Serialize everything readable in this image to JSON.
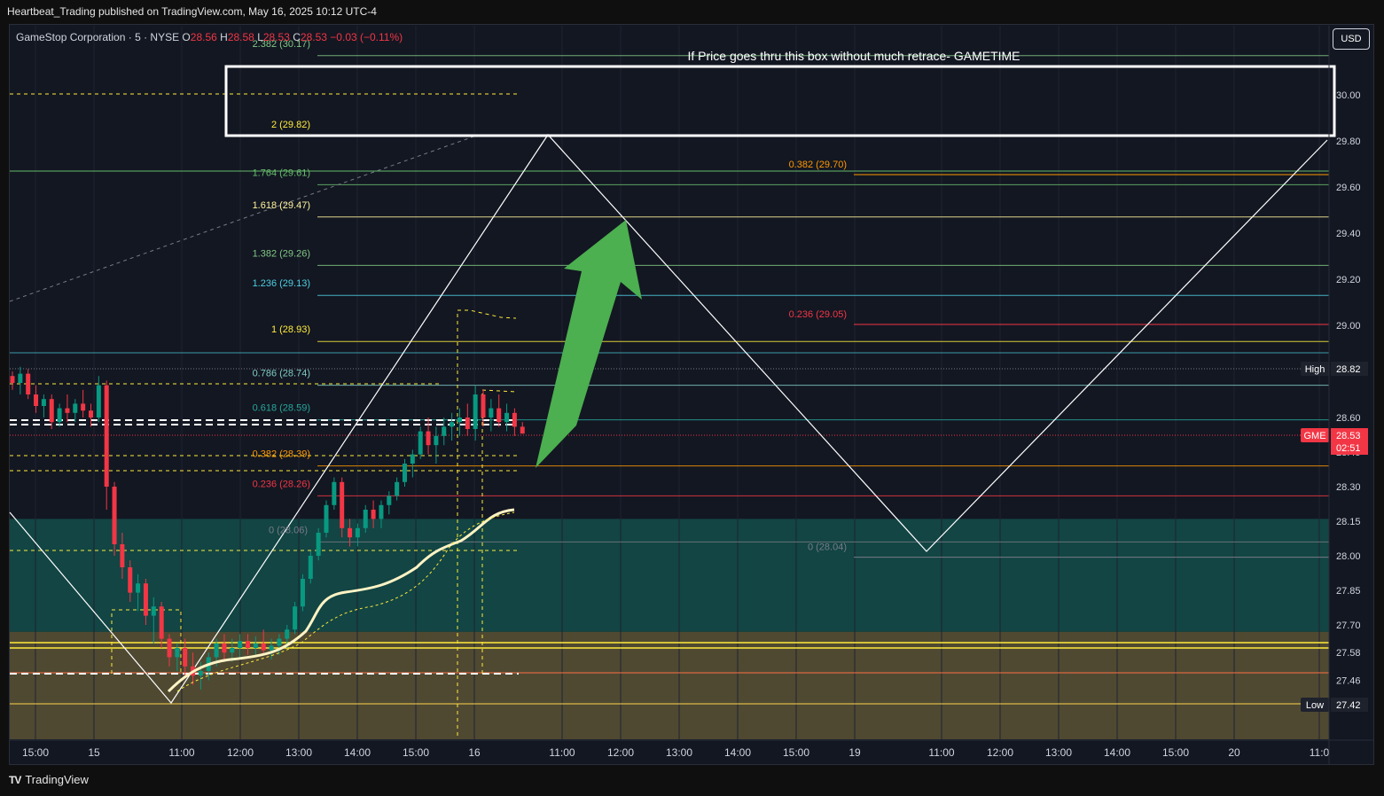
{
  "publish_info": "Heartbeat_Trading published on TradingView.com, May 16, 2025 10:12 UTC-4",
  "legend": {
    "symbol": "GameStop Corporation · 5 · NYSE",
    "open_label": "O",
    "open": "28.56",
    "high_label": "H",
    "high": "28.58",
    "low_label": "L",
    "low": "28.53",
    "close_label": "C",
    "close": "28.53",
    "change": "−0.03 (−0.11%)"
  },
  "currency_button": "USD",
  "footer": {
    "logo": "TV",
    "brand": "TradingView"
  },
  "colors": {
    "background": "#131722",
    "up_candle": "#089981",
    "down_candle": "#f23645",
    "price_tag": "#f23645",
    "high_low_tag": "#1e222d",
    "arrow": "#4caf50",
    "vwap": "#fff3c4",
    "zone_teal": "#134e4a",
    "zone_gold": "#5b5235"
  },
  "chart_data": {
    "type": "candlestick",
    "annotation": "If Price goes thru this box without much retrace- GAMETIME",
    "y_range": [
      27.28,
      30.31
    ],
    "y_ticks": [
      "30.00",
      "29.80",
      "29.60",
      "29.40",
      "29.20",
      "29.00",
      "28.60",
      "28.45",
      "28.30",
      "28.15",
      "28.00",
      "27.85",
      "27.70",
      "27.58",
      "27.46",
      "27.35"
    ],
    "x_ticks": [
      "15:00",
      "15",
      "11:00",
      "12:00",
      "13:00",
      "14:00",
      "15:00",
      "16",
      "11:00",
      "12:00",
      "13:00",
      "14:00",
      "15:00",
      "19",
      "11:00",
      "12:00",
      "13:00",
      "14:00",
      "15:00",
      "20",
      "11:0"
    ],
    "price_tags": {
      "high": {
        "label": "High",
        "value": "28.82"
      },
      "current": {
        "label": "GME",
        "value": "28.53",
        "countdown": "02:51"
      },
      "low": {
        "label": "Low",
        "value": "27.42"
      }
    },
    "fib_extension": [
      {
        "label": "2.382 (30.17)",
        "ratio": "2.382",
        "price": 30.17,
        "color": "#81c784"
      },
      {
        "label": "2 (29.82)",
        "ratio": "2",
        "price": 29.82,
        "color": "#ffeb3b"
      },
      {
        "label": "1.764 (29.61)",
        "ratio": "1.764",
        "price": 29.61,
        "color": "#66bb6a"
      },
      {
        "label": "1.618 (29.47)",
        "ratio": "1.618",
        "price": 29.47,
        "color": "#fff59d"
      },
      {
        "label": "1.382 (29.26)",
        "ratio": "1.382",
        "price": 29.26,
        "color": "#81c784"
      },
      {
        "label": "1.236 (29.13)",
        "ratio": "1.236",
        "price": 29.13,
        "color": "#4dd0e1"
      },
      {
        "label": "1 (28.93)",
        "ratio": "1",
        "price": 28.93,
        "color": "#ffeb3b"
      },
      {
        "label": "0.786 (28.74)",
        "ratio": "0.786",
        "price": 28.74,
        "color": "#80cbc4"
      },
      {
        "label": "0.618 (28.59)",
        "ratio": "0.618",
        "price": 28.59,
        "color": "#26a69a"
      },
      {
        "label": "0.382 (28.39)",
        "ratio": "0.382",
        "price": 28.39,
        "color": "#ff9800"
      },
      {
        "label": "0.236 (28.26)",
        "ratio": "0.236",
        "price": 28.26,
        "color": "#f23645"
      },
      {
        "label": "0 (28.06)",
        "ratio": "0",
        "price": 28.06,
        "color": "#787b86"
      }
    ],
    "fib_right": [
      {
        "label": "0.382 (29.70)",
        "price": 29.7,
        "color": "#ff9800"
      },
      {
        "label": "0.236 (29.05)",
        "price": 29.05,
        "color": "#f23645"
      },
      {
        "label": "0 (28.04)",
        "price": 28.04,
        "color": "#787b86"
      }
    ],
    "candles": [
      [
        28.78,
        28.8,
        28.72,
        28.75
      ],
      [
        28.75,
        28.82,
        28.7,
        28.79
      ],
      [
        28.79,
        28.81,
        28.68,
        28.7
      ],
      [
        28.7,
        28.74,
        28.62,
        28.65
      ],
      [
        28.65,
        28.7,
        28.6,
        28.68
      ],
      [
        28.68,
        28.7,
        28.55,
        28.58
      ],
      [
        28.58,
        28.66,
        28.56,
        28.64
      ],
      [
        28.64,
        28.7,
        28.58,
        28.62
      ],
      [
        28.62,
        28.68,
        28.58,
        28.66
      ],
      [
        28.66,
        28.72,
        28.6,
        28.63
      ],
      [
        28.63,
        28.66,
        28.56,
        28.6
      ],
      [
        28.6,
        28.78,
        28.58,
        28.74
      ],
      [
        28.74,
        28.76,
        28.2,
        28.3
      ],
      [
        28.3,
        28.32,
        28.0,
        28.05
      ],
      [
        28.05,
        28.1,
        27.9,
        27.95
      ],
      [
        27.95,
        27.98,
        27.8,
        27.84
      ],
      [
        27.84,
        27.92,
        27.76,
        27.88
      ],
      [
        27.88,
        27.9,
        27.7,
        27.74
      ],
      [
        27.74,
        27.82,
        27.62,
        27.78
      ],
      [
        27.78,
        27.8,
        27.6,
        27.64
      ],
      [
        27.64,
        27.66,
        27.52,
        27.56
      ],
      [
        27.56,
        27.62,
        27.5,
        27.6
      ],
      [
        27.6,
        27.64,
        27.48,
        27.52
      ],
      [
        27.52,
        27.58,
        27.44,
        27.48
      ],
      [
        27.48,
        27.54,
        27.42,
        27.5
      ],
      [
        27.5,
        27.58,
        27.46,
        27.56
      ],
      [
        27.56,
        27.64,
        27.52,
        27.62
      ],
      [
        27.62,
        27.66,
        27.55,
        27.58
      ],
      [
        27.58,
        27.64,
        27.54,
        27.6
      ],
      [
        27.6,
        27.66,
        27.56,
        27.63
      ],
      [
        27.63,
        27.66,
        27.57,
        27.6
      ],
      [
        27.6,
        27.65,
        27.56,
        27.62
      ],
      [
        27.62,
        27.68,
        27.57,
        27.59
      ],
      [
        27.59,
        27.64,
        27.55,
        27.61
      ],
      [
        27.61,
        27.66,
        27.57,
        27.64
      ],
      [
        27.64,
        27.7,
        27.6,
        27.68
      ],
      [
        27.68,
        27.8,
        27.66,
        27.78
      ],
      [
        27.78,
        27.92,
        27.76,
        27.9
      ],
      [
        27.9,
        28.02,
        27.88,
        28.0
      ],
      [
        28.0,
        28.12,
        27.98,
        28.1
      ],
      [
        28.1,
        28.24,
        28.08,
        28.22
      ],
      [
        28.22,
        28.34,
        28.2,
        28.32
      ],
      [
        28.32,
        28.34,
        28.08,
        28.12
      ],
      [
        28.12,
        28.16,
        28.04,
        28.08
      ],
      [
        28.08,
        28.14,
        28.04,
        28.12
      ],
      [
        28.12,
        28.22,
        28.1,
        28.2
      ],
      [
        28.2,
        28.24,
        28.12,
        28.16
      ],
      [
        28.16,
        28.24,
        28.12,
        28.22
      ],
      [
        28.22,
        28.28,
        28.18,
        28.26
      ],
      [
        28.26,
        28.34,
        28.24,
        28.32
      ],
      [
        28.32,
        28.42,
        28.3,
        28.4
      ],
      [
        28.4,
        28.46,
        28.34,
        28.44
      ],
      [
        28.44,
        28.56,
        28.42,
        28.54
      ],
      [
        28.54,
        28.6,
        28.44,
        28.48
      ],
      [
        28.48,
        28.56,
        28.4,
        28.52
      ],
      [
        28.52,
        28.6,
        28.48,
        28.56
      ],
      [
        28.56,
        28.62,
        28.5,
        28.58
      ],
      [
        28.58,
        28.64,
        28.52,
        28.6
      ],
      [
        28.6,
        28.66,
        28.52,
        28.55
      ],
      [
        28.55,
        28.74,
        28.5,
        28.7
      ],
      [
        28.7,
        28.72,
        28.56,
        28.6
      ],
      [
        28.6,
        28.68,
        28.54,
        28.64
      ],
      [
        28.64,
        28.7,
        28.56,
        28.58
      ],
      [
        28.58,
        28.66,
        28.54,
        28.62
      ],
      [
        28.62,
        28.64,
        28.52,
        28.56
      ],
      [
        28.56,
        28.58,
        28.53,
        28.53
      ]
    ]
  }
}
